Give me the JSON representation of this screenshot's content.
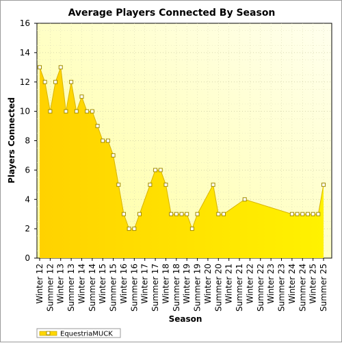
{
  "chart_data": {
    "type": "area",
    "title": "Average Players Connected By Season",
    "xlabel": "Season",
    "ylabel": "Players Connected",
    "ylim": [
      0,
      16
    ],
    "yticks": [
      0,
      2,
      4,
      6,
      8,
      10,
      12,
      14,
      16
    ],
    "grid": true,
    "legend_position": "bottom-left",
    "categories": [
      "Winter 12",
      "Summer 12",
      "Winter 13",
      "Summer 13",
      "Winter 14",
      "Summer 14",
      "Winter 15",
      "Summer 15",
      "Winter 16",
      "Summer 16",
      "Winter 17",
      "Summer 17",
      "Winter 18",
      "Summer 18",
      "Winter 19",
      "Summer 19",
      "Winter 20",
      "Summer 20",
      "Winter 21",
      "Summer 21",
      "Winter 22",
      "Summer 22",
      "Winter 23",
      "Summer 23",
      "Winter 24",
      "Summer 24",
      "Winter 25",
      "Summer 25"
    ],
    "series": [
      {
        "name": "EquestriaMUCK",
        "color": "#ffd700",
        "points": [
          {
            "x": 0.0,
            "y": 13
          },
          {
            "x": 0.5,
            "y": 12
          },
          {
            "x": 1.0,
            "y": 10
          },
          {
            "x": 1.5,
            "y": 12
          },
          {
            "x": 2.0,
            "y": 13
          },
          {
            "x": 2.5,
            "y": 10
          },
          {
            "x": 3.0,
            "y": 12
          },
          {
            "x": 3.5,
            "y": 10
          },
          {
            "x": 4.0,
            "y": 11
          },
          {
            "x": 4.5,
            "y": 10
          },
          {
            "x": 5.0,
            "y": 10
          },
          {
            "x": 5.5,
            "y": 9
          },
          {
            "x": 6.0,
            "y": 8
          },
          {
            "x": 6.5,
            "y": 8
          },
          {
            "x": 7.0,
            "y": 7
          },
          {
            "x": 7.5,
            "y": 5
          },
          {
            "x": 8.0,
            "y": 3
          },
          {
            "x": 8.5,
            "y": 2
          },
          {
            "x": 9.0,
            "y": 2
          },
          {
            "x": 9.5,
            "y": 3
          },
          {
            "x": 10.5,
            "y": 5
          },
          {
            "x": 11.0,
            "y": 6
          },
          {
            "x": 11.5,
            "y": 6
          },
          {
            "x": 12.0,
            "y": 5
          },
          {
            "x": 12.5,
            "y": 3
          },
          {
            "x": 13.0,
            "y": 3
          },
          {
            "x": 13.5,
            "y": 3
          },
          {
            "x": 14.0,
            "y": 3
          },
          {
            "x": 14.5,
            "y": 2
          },
          {
            "x": 15.0,
            "y": 3
          },
          {
            "x": 16.5,
            "y": 5
          },
          {
            "x": 17.0,
            "y": 3
          },
          {
            "x": 17.5,
            "y": 3
          },
          {
            "x": 19.5,
            "y": 4
          },
          {
            "x": 24.0,
            "y": 3
          },
          {
            "x": 24.5,
            "y": 3
          },
          {
            "x": 25.0,
            "y": 3
          },
          {
            "x": 25.5,
            "y": 3
          },
          {
            "x": 26.0,
            "y": 3
          },
          {
            "x": 26.5,
            "y": 3
          },
          {
            "x": 27.0,
            "y": 5
          }
        ]
      }
    ]
  }
}
